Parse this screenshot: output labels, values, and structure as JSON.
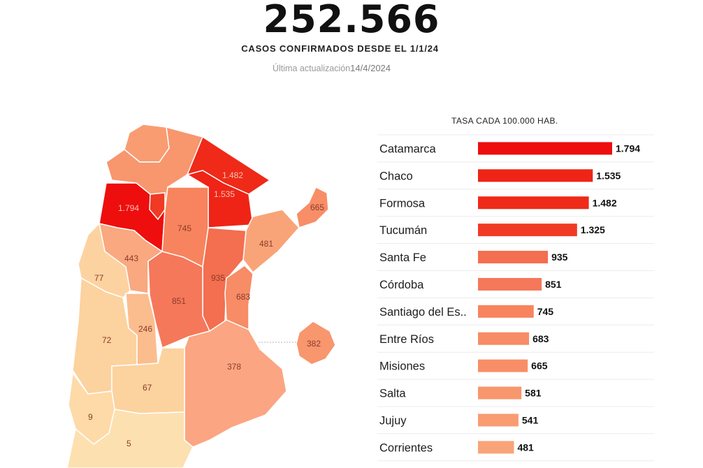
{
  "header": {
    "total": "252.566",
    "subtitle": "CASOS CONFIRMADOS DESDE EL 1/1/24",
    "updated_label": "Última actualización",
    "updated_value": "14/4/2024"
  },
  "map": {
    "labels": [
      "1.794",
      "1.482",
      "1.535",
      "665",
      "745",
      "481",
      "443",
      "77",
      "935",
      "851",
      "683",
      "246",
      "72",
      "382",
      "378",
      "67",
      "9",
      "5"
    ]
  },
  "chart_data": {
    "type": "bar",
    "orientation": "horizontal",
    "title": "TASA CADA 100.000 HAB.",
    "categories": [
      "Catamarca",
      "Chaco",
      "Formosa",
      "Tucumán",
      "Santa Fe",
      "Córdoba",
      "Santiago del Es..",
      "Entre Ríos",
      "Misiones",
      "Salta",
      "Jujuy",
      "Corrientes"
    ],
    "values": [
      1794,
      1535,
      1482,
      1325,
      935,
      851,
      745,
      683,
      665,
      581,
      541,
      481
    ],
    "value_labels": [
      "1.794",
      "1.535",
      "1.482",
      "1.325",
      "935",
      "851",
      "745",
      "683",
      "665",
      "581",
      "541",
      "481"
    ],
    "xlim": [
      0,
      1794
    ],
    "bar_colors": [
      "#ee0e0e",
      "#ef2416",
      "#ef2a18",
      "#f03a24",
      "#f46e50",
      "#f5785a",
      "#f7845e",
      "#f78c66",
      "#f88e68",
      "#f8966e",
      "#f99c72",
      "#f9a478"
    ],
    "grid": false,
    "legend": "none"
  }
}
